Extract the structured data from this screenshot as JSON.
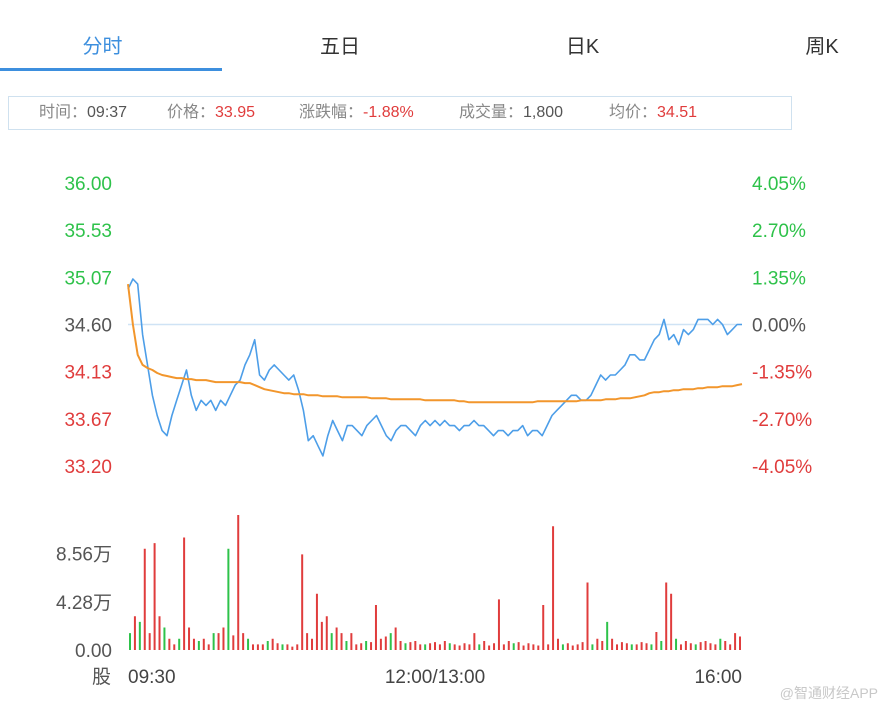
{
  "tabs": [
    {
      "label": "分时",
      "active": true
    },
    {
      "label": "五日",
      "active": false
    },
    {
      "label": "日K",
      "active": false
    },
    {
      "label": "周K",
      "active": false
    }
  ],
  "info": {
    "time_label": "时间：",
    "time_value": "09:37",
    "price_label": "价格：",
    "price_value": "33.95",
    "change_label": "涨跌幅：",
    "change_value": "-1.88%",
    "volume_label": "成交量：",
    "volume_value": "1,800",
    "avg_label": "均价：",
    "avg_value": "34.51"
  },
  "watermark": "@智通财经APP",
  "colors": {
    "up": "#2ec24a",
    "down": "#e03c3c",
    "price_line": "#4d9ee8",
    "avg_line": "#f2962c",
    "base_line": "#cfe3f5"
  },
  "chart_data": [
    {
      "type": "line",
      "ylim": [
        33.2,
        36.0
      ],
      "left_ticks": [
        "36.00",
        "35.53",
        "35.07",
        "34.60",
        "34.13",
        "33.67",
        "33.20"
      ],
      "right_ticks": [
        "4.05%",
        "2.70%",
        "1.35%",
        "0.00%",
        "-1.35%",
        "-2.70%",
        "-4.05%"
      ],
      "base_price": 34.6,
      "x_ticks": [
        "09:30",
        "12:00/13:00",
        "16:00"
      ],
      "series": [
        {
          "values": [
            34.95,
            35.05,
            35.0,
            34.5,
            34.2,
            33.9,
            33.7,
            33.55,
            33.5,
            33.7,
            33.85,
            34.0,
            34.15,
            33.9,
            33.75,
            33.85,
            33.8,
            33.85,
            33.75,
            33.85,
            33.8,
            33.9,
            34.0,
            34.05,
            34.2,
            34.3,
            34.45,
            34.1,
            34.05,
            34.15,
            34.2,
            34.15,
            34.1,
            34.05,
            34.1,
            33.95,
            33.75,
            33.45,
            33.5,
            33.4,
            33.3,
            33.5,
            33.65,
            33.55,
            33.45,
            33.6,
            33.6,
            33.55,
            33.5,
            33.6,
            33.65,
            33.7,
            33.6,
            33.5,
            33.45,
            33.55,
            33.6,
            33.6,
            33.55,
            33.5,
            33.6,
            33.65,
            33.6,
            33.65,
            33.6,
            33.65,
            33.6,
            33.6,
            33.55,
            33.6,
            33.6,
            33.65,
            33.6,
            33.6,
            33.55,
            33.5,
            33.55,
            33.55,
            33.5,
            33.55,
            33.55,
            33.6,
            33.5,
            33.55,
            33.55,
            33.5,
            33.6,
            33.7,
            33.75,
            33.8,
            33.85,
            33.9,
            33.9,
            33.85,
            33.85,
            33.9,
            34.0,
            34.1,
            34.05,
            34.1,
            34.1,
            34.15,
            34.2,
            34.3,
            34.3,
            34.25,
            34.25,
            34.35,
            34.45,
            34.5,
            34.65,
            34.45,
            34.5,
            34.4,
            34.55,
            34.5,
            34.55,
            34.65,
            34.65,
            34.65,
            34.6,
            34.65,
            34.6,
            34.5,
            34.55,
            34.6,
            34.6
          ]
        },
        {
          "values": [
            35.0,
            34.6,
            34.3,
            34.2,
            34.17,
            34.15,
            34.12,
            34.1,
            34.09,
            34.08,
            34.07,
            34.07,
            34.06,
            34.06,
            34.05,
            34.05,
            34.05,
            34.04,
            34.03,
            34.03,
            34.03,
            34.03,
            34.03,
            34.03,
            34.02,
            34.02,
            34.0,
            33.98,
            33.96,
            33.95,
            33.94,
            33.93,
            33.92,
            33.92,
            33.91,
            33.91,
            33.91,
            33.9,
            33.9,
            33.9,
            33.89,
            33.89,
            33.89,
            33.89,
            33.88,
            33.88,
            33.88,
            33.88,
            33.88,
            33.88,
            33.87,
            33.87,
            33.87,
            33.87,
            33.86,
            33.86,
            33.86,
            33.86,
            33.86,
            33.86,
            33.86,
            33.85,
            33.85,
            33.85,
            33.85,
            33.85,
            33.85,
            33.85,
            33.84,
            33.84,
            33.83,
            33.83,
            33.83,
            33.83,
            33.83,
            33.83,
            33.83,
            33.83,
            33.83,
            33.83,
            33.83,
            33.83,
            33.83,
            33.83,
            33.84,
            33.84,
            33.84,
            33.84,
            33.84,
            33.84,
            33.84,
            33.84,
            33.84,
            33.85,
            33.85,
            33.85,
            33.85,
            33.85,
            33.86,
            33.86,
            33.86,
            33.87,
            33.87,
            33.87,
            33.88,
            33.89,
            33.9,
            33.92,
            33.93,
            33.93,
            33.94,
            33.94,
            33.95,
            33.95,
            33.96,
            33.96,
            33.96,
            33.97,
            33.97,
            33.98,
            33.98,
            33.98,
            33.99,
            33.99,
            33.99,
            34.0,
            34.01
          ]
        }
      ]
    },
    {
      "type": "bar",
      "ylim": [
        0,
        12
      ],
      "y_ticks": [
        "8.56万",
        "4.28万",
        "0.00"
      ],
      "y_unit_label": "股",
      "values": [
        1.5,
        3,
        2.5,
        9,
        1.5,
        9.5,
        3,
        2,
        1,
        0.5,
        1,
        10,
        2,
        1,
        0.8,
        1,
        0.5,
        1.5,
        1.5,
        2,
        9,
        1.3,
        12,
        1.5,
        1,
        0.5,
        0.5,
        0.5,
        0.8,
        1,
        0.6,
        0.5,
        0.5,
        0.3,
        0.5,
        8.5,
        1.5,
        1,
        5,
        2.5,
        3,
        1.5,
        2,
        1.5,
        0.8,
        1.5,
        0.5,
        0.6,
        0.8,
        0.7,
        4,
        1,
        1.2,
        1.5,
        2,
        0.8,
        0.6,
        0.7,
        0.8,
        0.5,
        0.5,
        0.6,
        0.7,
        0.5,
        0.8,
        0.6,
        0.5,
        0.4,
        0.6,
        0.5,
        1.5,
        0.5,
        0.8,
        0.4,
        0.6,
        4.5,
        0.5,
        0.8,
        0.6,
        0.7,
        0.4,
        0.6,
        0.5,
        0.4,
        4,
        0.5,
        11,
        1,
        0.5,
        0.6,
        0.4,
        0.5,
        0.7,
        6,
        0.5,
        1,
        0.8,
        2.5,
        1,
        0.5,
        0.7,
        0.6,
        0.5,
        0.5,
        0.7,
        0.6,
        0.5,
        1.6,
        0.8,
        6,
        5,
        1,
        0.5,
        0.8,
        0.6,
        0.5,
        0.7,
        0.8,
        0.6,
        0.5,
        1,
        0.8,
        0.5,
        1.5,
        1.2
      ],
      "colors": [
        "up",
        "down",
        "up",
        "down",
        "down",
        "down",
        "down",
        "up",
        "down",
        "down",
        "up",
        "down",
        "down",
        "down",
        "up",
        "down",
        "down",
        "up",
        "down",
        "down",
        "up",
        "down",
        "down",
        "down",
        "up",
        "down",
        "down",
        "down",
        "up",
        "down",
        "down",
        "up",
        "down",
        "down",
        "down",
        "down",
        "down",
        "down",
        "down",
        "down",
        "down",
        "up",
        "down",
        "down",
        "up",
        "down",
        "down",
        "down",
        "up",
        "down",
        "down",
        "down",
        "down",
        "up",
        "down",
        "down",
        "up",
        "down",
        "down",
        "down",
        "up",
        "down",
        "down",
        "down",
        "down",
        "up",
        "down",
        "down",
        "down",
        "down",
        "down",
        "up",
        "down",
        "down",
        "down",
        "down",
        "down",
        "down",
        "up",
        "down",
        "down",
        "down",
        "down",
        "down",
        "down",
        "down",
        "down",
        "down",
        "up",
        "down",
        "down",
        "down",
        "down",
        "down",
        "up",
        "down",
        "down",
        "up",
        "down",
        "down",
        "down",
        "down",
        "up",
        "down",
        "down",
        "down",
        "up",
        "down",
        "up",
        "down",
        "down",
        "up",
        "down",
        "down",
        "down",
        "up",
        "down",
        "down",
        "down",
        "down",
        "up",
        "down",
        "down",
        "down",
        "down"
      ]
    }
  ]
}
